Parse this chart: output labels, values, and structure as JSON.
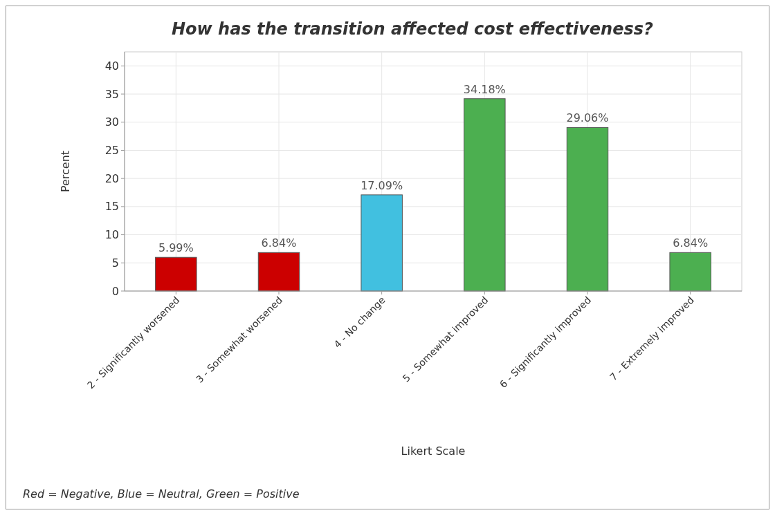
{
  "chart_data": {
    "type": "bar",
    "title": "How has the transition affected cost effectiveness?",
    "xlabel": "Likert Scale",
    "ylabel": "Percent",
    "categories": [
      "2 - Significantly worsened",
      "3 - Somewhat worsened",
      "4 - No change",
      "5 - Somewhat improved",
      "6 - Significantly improved",
      "7 - Extremely improved"
    ],
    "values": [
      5.99,
      6.84,
      17.09,
      34.18,
      29.06,
      6.84
    ],
    "colors": [
      "#cc0000",
      "#cc0000",
      "#41c0e0",
      "#4caf50",
      "#4caf50",
      "#4caf50"
    ],
    "value_labels": [
      "5.99%",
      "6.84%",
      "17.09%",
      "34.18%",
      "29.06%",
      "6.84%"
    ],
    "ylim": [
      0,
      42.5
    ],
    "yticks": [
      0,
      5,
      10,
      15,
      20,
      25,
      30,
      35,
      40
    ],
    "grid": true,
    "annotations": [
      "Red = Negative, Blue = Neutral, Green = Positive"
    ]
  }
}
